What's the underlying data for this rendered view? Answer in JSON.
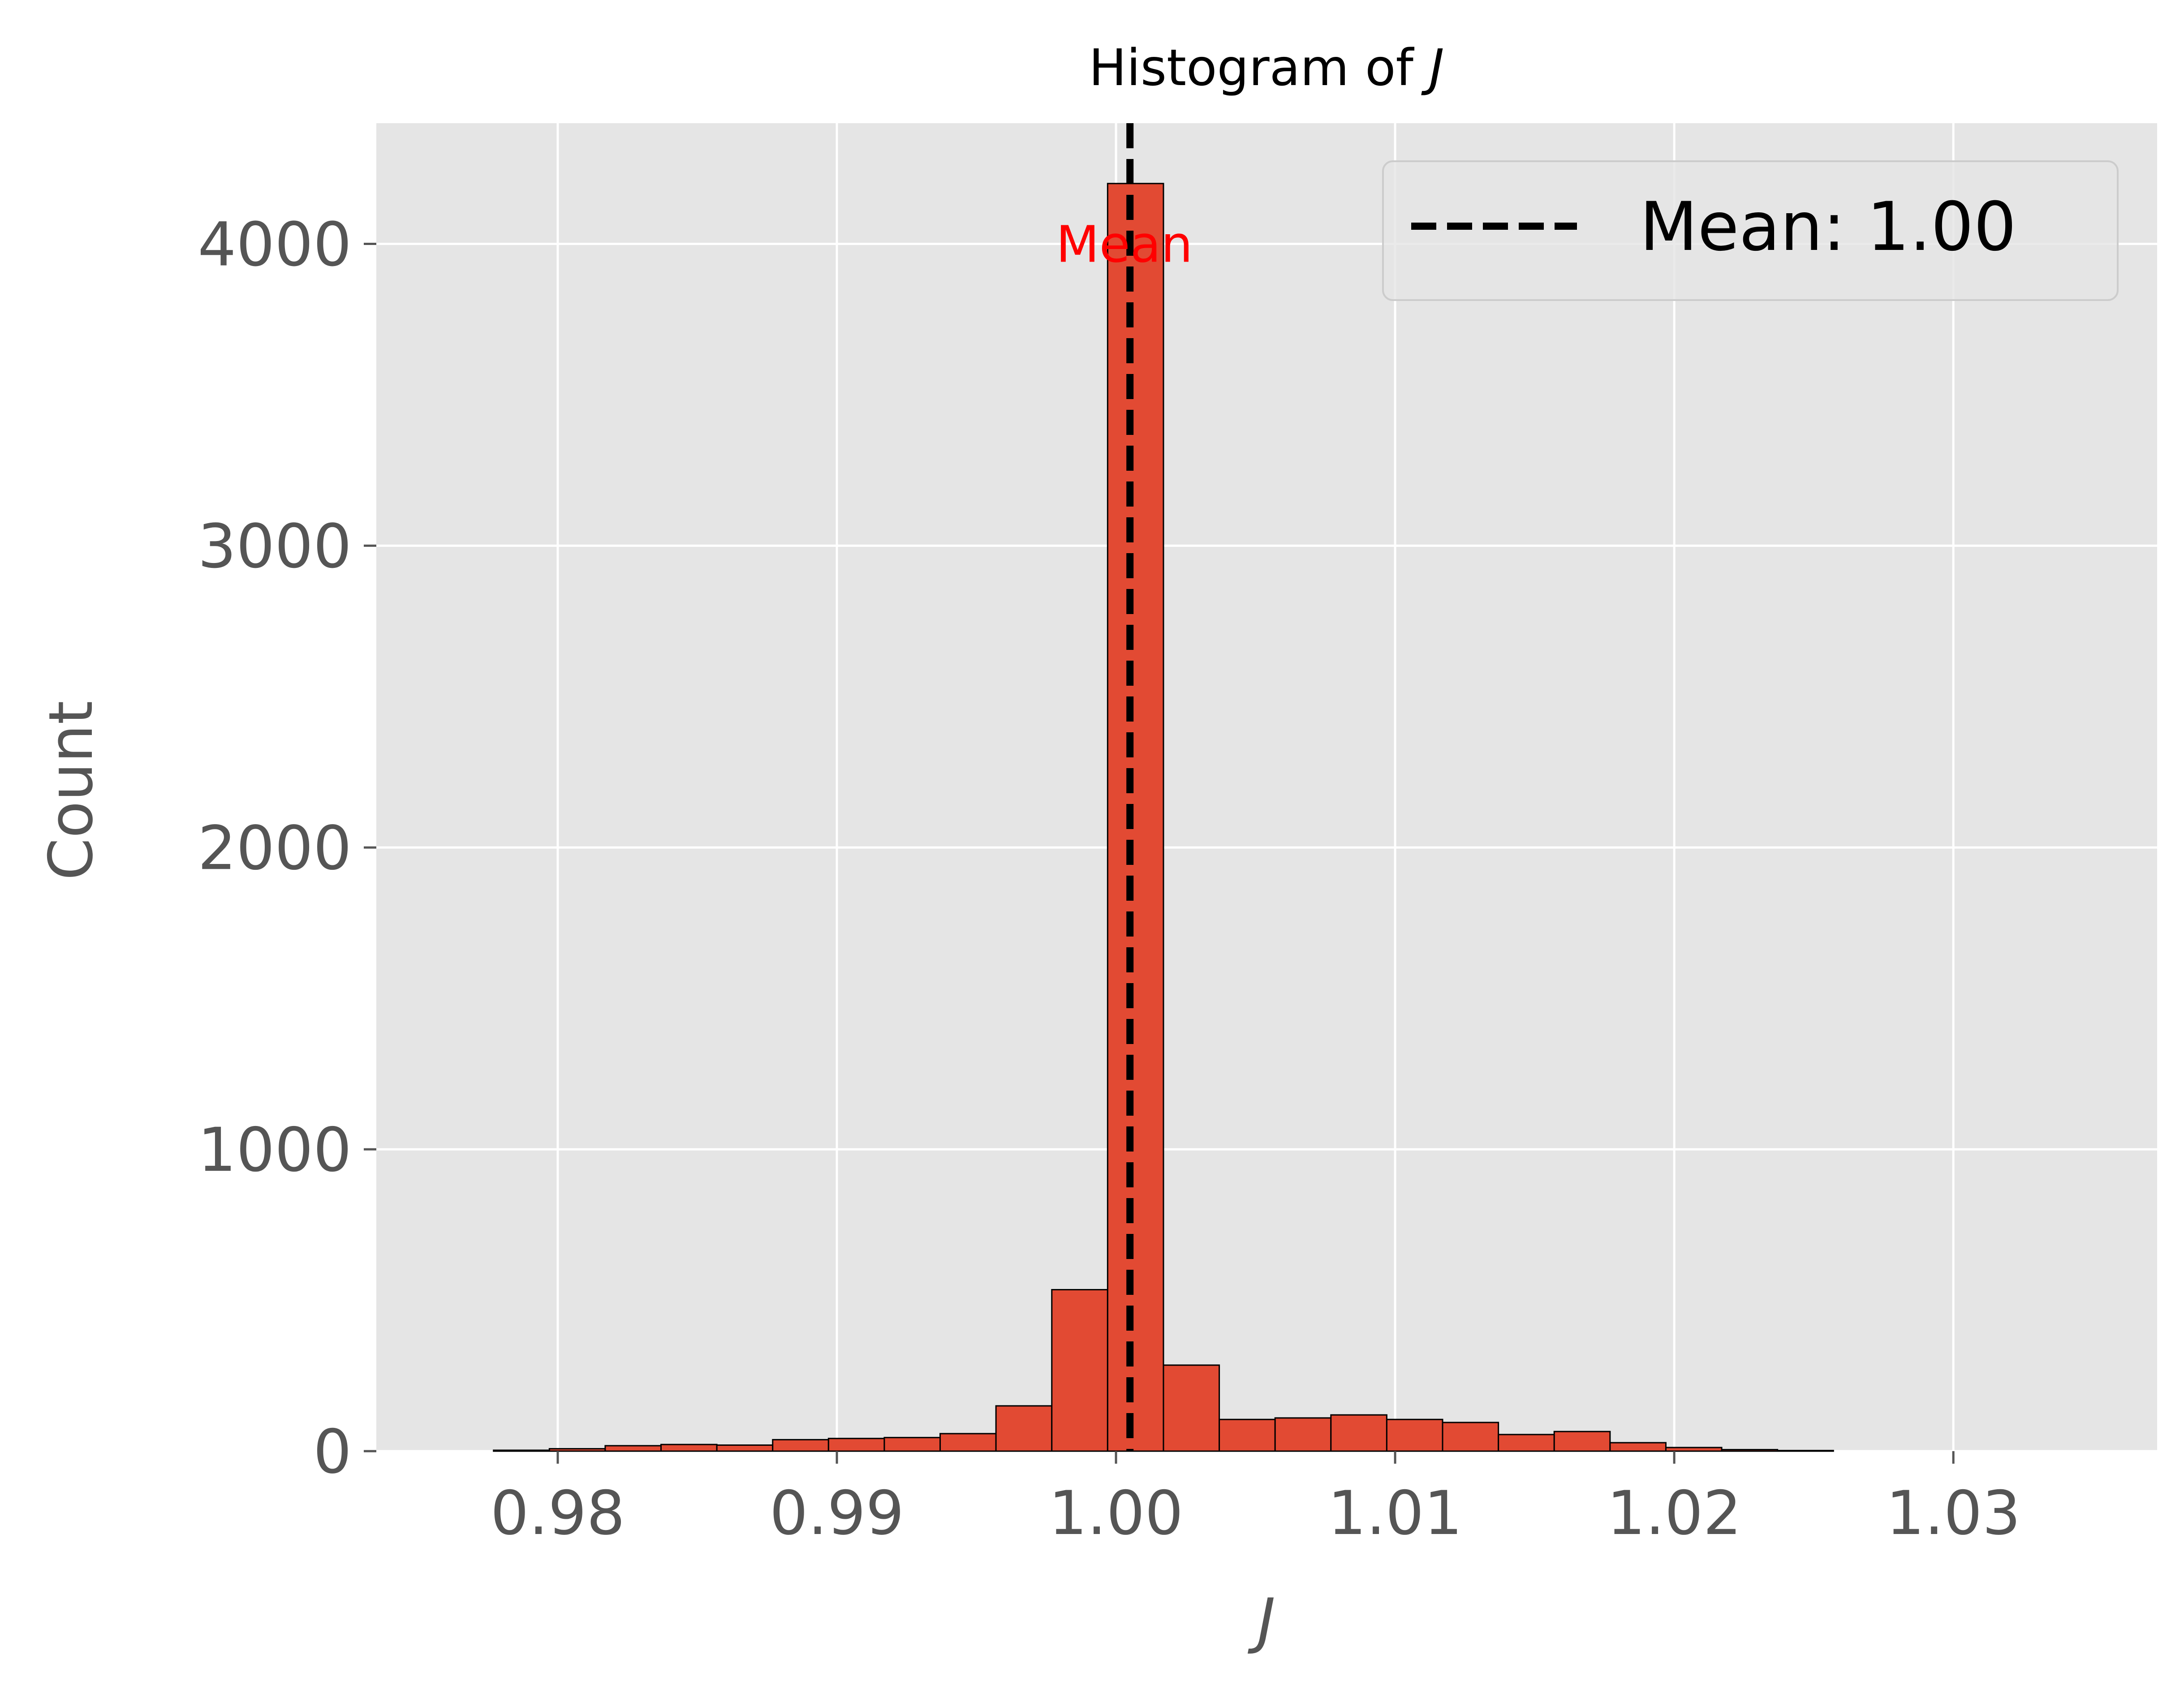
{
  "chart_data": {
    "type": "bar",
    "title": "Histogram of J",
    "title_prefix": "Histogram of ",
    "title_var": "J",
    "xlabel": "J",
    "ylabel": "Count",
    "xlim": [
      0.9735,
      1.0373
    ],
    "ylim": [
      0,
      4400
    ],
    "xticks": [
      0.98,
      0.99,
      1.0,
      1.01,
      1.02,
      1.03
    ],
    "xtick_labels": [
      "0.98",
      "0.99",
      "1.00",
      "1.01",
      "1.02",
      "1.03"
    ],
    "yticks": [
      0,
      1000,
      2000,
      3000,
      4000
    ],
    "ytick_labels": [
      "0",
      "1000",
      "2000",
      "3000",
      "4000"
    ],
    "grid": true,
    "bin_width": 0.002,
    "bins": [
      {
        "start": 0.9777,
        "count": 3
      },
      {
        "start": 0.9797,
        "count": 8
      },
      {
        "start": 0.9817,
        "count": 18
      },
      {
        "start": 0.9837,
        "count": 22
      },
      {
        "start": 0.9857,
        "count": 20
      },
      {
        "start": 0.9877,
        "count": 38
      },
      {
        "start": 0.9897,
        "count": 42
      },
      {
        "start": 0.9917,
        "count": 45
      },
      {
        "start": 0.9937,
        "count": 58
      },
      {
        "start": 0.9957,
        "count": 150
      },
      {
        "start": 0.9977,
        "count": 535
      },
      {
        "start": 0.9997,
        "count": 4200
      },
      {
        "start": 1.0017,
        "count": 285
      },
      {
        "start": 1.0037,
        "count": 105
      },
      {
        "start": 1.0057,
        "count": 110
      },
      {
        "start": 1.0077,
        "count": 120
      },
      {
        "start": 1.0097,
        "count": 105
      },
      {
        "start": 1.0117,
        "count": 95
      },
      {
        "start": 1.0137,
        "count": 55
      },
      {
        "start": 1.0157,
        "count": 65
      },
      {
        "start": 1.0177,
        "count": 28
      },
      {
        "start": 1.0197,
        "count": 12
      },
      {
        "start": 1.0217,
        "count": 5
      },
      {
        "start": 1.0237,
        "count": 2
      }
    ],
    "mean_line": {
      "x": 1.0005,
      "style": "dashed",
      "color": "#000000"
    },
    "annotation": {
      "text": "Mean",
      "x": 1.0003,
      "y": 4000,
      "color": "#ff0000"
    },
    "legend": {
      "placement": "top-right",
      "entries": [
        {
          "label": "Mean: 1.00",
          "style": "dashed",
          "color": "#000000"
        }
      ]
    },
    "colors": {
      "bar_fill": "#e24a33",
      "bar_edge": "#000000",
      "plot_bg": "#e5e5e5",
      "grid": "#ffffff"
    }
  }
}
